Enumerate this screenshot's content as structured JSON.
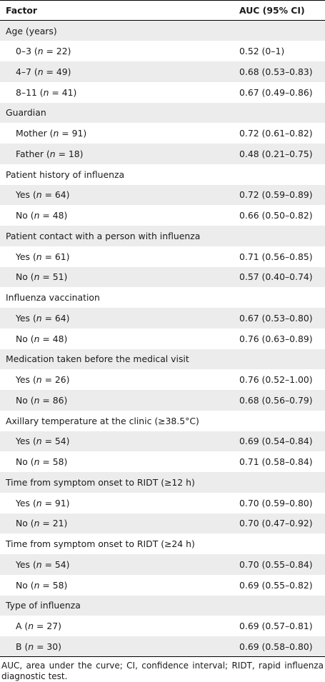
{
  "table": {
    "header": {
      "factor": "Factor",
      "auc": "AUC (95% CI)"
    },
    "rows": [
      {
        "type": "group",
        "label": "Age (years)"
      },
      {
        "type": "sub",
        "pre": "0–3 (",
        "n": "n",
        "post": " = 22)",
        "auc": "0.52 (0–1)"
      },
      {
        "type": "sub",
        "pre": "4–7 (",
        "n": "n",
        "post": " = 49)",
        "auc": "0.68 (0.53–0.83)"
      },
      {
        "type": "sub",
        "pre": "8–11 (",
        "n": "n",
        "post": " = 41)",
        "auc": "0.67 (0.49–0.86)"
      },
      {
        "type": "group",
        "label": "Guardian"
      },
      {
        "type": "sub",
        "pre": "Mother (",
        "n": "n",
        "post": " = 91)",
        "auc": "0.72 (0.61–0.82)"
      },
      {
        "type": "sub",
        "pre": "Father (",
        "n": "n",
        "post": " = 18)",
        "auc": "0.48 (0.21–0.75)"
      },
      {
        "type": "group",
        "label": "Patient history of influenza"
      },
      {
        "type": "sub",
        "pre": "Yes (",
        "n": "n",
        "post": " = 64)",
        "auc": "0.72 (0.59–0.89)"
      },
      {
        "type": "sub",
        "pre": "No (",
        "n": "n",
        "post": " = 48)",
        "auc": "0.66 (0.50–0.82)"
      },
      {
        "type": "group",
        "label": "Patient contact with a person with influenza"
      },
      {
        "type": "sub",
        "pre": "Yes (",
        "n": "n",
        "post": " = 61)",
        "auc": "0.71 (0.56–0.85)"
      },
      {
        "type": "sub",
        "pre": "No (",
        "n": "n",
        "post": " = 51)",
        "auc": "0.57 (0.40–0.74)"
      },
      {
        "type": "group",
        "label": "Influenza vaccination"
      },
      {
        "type": "sub",
        "pre": "Yes (",
        "n": "n",
        "post": " = 64)",
        "auc": "0.67 (0.53–0.80)"
      },
      {
        "type": "sub",
        "pre": "No (",
        "n": "n",
        "post": " = 48)",
        "auc": "0.76 (0.63–0.89)"
      },
      {
        "type": "group",
        "label": "Medication taken before the medical visit"
      },
      {
        "type": "sub",
        "pre": "Yes (",
        "n": "n",
        "post": " = 26)",
        "auc": "0.76 (0.52–1.00)"
      },
      {
        "type": "sub",
        "pre": "No (",
        "n": "n",
        "post": " = 86)",
        "auc": "0.68 (0.56–0.79)"
      },
      {
        "type": "group",
        "label": "Axillary temperature at the clinic (≥38.5°C)"
      },
      {
        "type": "sub",
        "pre": "Yes (",
        "n": "n",
        "post": " = 54)",
        "auc": "0.69 (0.54–0.84)"
      },
      {
        "type": "sub",
        "pre": "No (",
        "n": "n",
        "post": " = 58)",
        "auc": "0.71 (0.58–0.84)"
      },
      {
        "type": "group",
        "label": "Time from symptom onset to RIDT (≥12 h)"
      },
      {
        "type": "sub",
        "pre": "Yes (",
        "n": "n",
        "post": " = 91)",
        "auc": "0.70 (0.59–0.80)"
      },
      {
        "type": "sub",
        "pre": "No (",
        "n": "n",
        "post": " = 21)",
        "auc": "0.70 (0.47–0.92)"
      },
      {
        "type": "group",
        "label": "Time from symptom onset to RIDT (≥24 h)"
      },
      {
        "type": "sub",
        "pre": "Yes (",
        "n": "n",
        "post": " = 54)",
        "auc": "0.70 (0.55–0.84)"
      },
      {
        "type": "sub",
        "pre": "No (",
        "n": "n",
        "post": " = 58)",
        "auc": "0.69 (0.55–0.82)"
      },
      {
        "type": "group",
        "label": "Type of influenza"
      },
      {
        "type": "sub",
        "pre": "A (",
        "n": "n",
        "post": " = 27)",
        "auc": "0.69 (0.57–0.81)"
      },
      {
        "type": "sub",
        "pre": "B (",
        "n": "n",
        "post": " = 30)",
        "auc": "0.69 (0.58–0.80)"
      }
    ]
  },
  "footnote": "AUC, area under the curve; CI, confidence interval; RIDT, rapid influenza diagnostic test.",
  "colors": {
    "shade": "#ececec",
    "rule": "#000000",
    "text": "#1a1a1a"
  }
}
